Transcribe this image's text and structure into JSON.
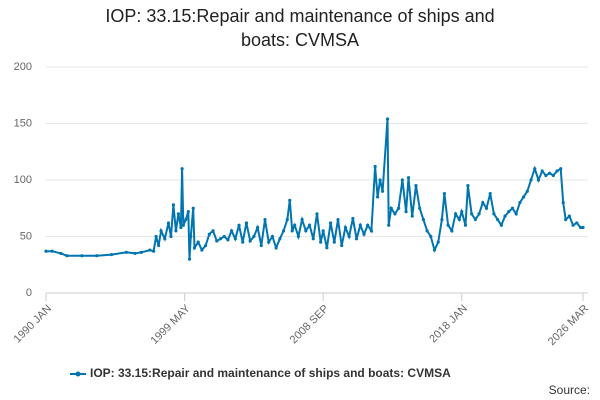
{
  "chart_data": {
    "type": "line",
    "title": "IOP: 33.15:Repair and maintenance of ships and boats: CVMSA",
    "source": "Source:",
    "x": [
      "1990 JAN",
      "1990 JUN",
      "1991 JAN",
      "1991 JUN",
      "1992 JUN",
      "1993 JUN",
      "1994 JUN",
      "1995 JUN",
      "1996 JAN",
      "1996 JUN",
      "1997 JAN",
      "1997 APR",
      "1997 JUN",
      "1997 AUG",
      "1997 OCT",
      "1998 JAN",
      "1998 APR",
      "1998 JUN",
      "1998 AUG",
      "1998 OCT",
      "1998 DEC",
      "1999 FEB",
      "1999 MAR",
      "1999 APR",
      "1999 JUN",
      "1999 AUG",
      "1999 SEP",
      "1999 OCT",
      "1999 DEC",
      "2000 JAN",
      "2000 APR",
      "2000 JUL",
      "2000 OCT",
      "2001 JAN",
      "2001 APR",
      "2001 JUL",
      "2001 OCT",
      "2002 JAN",
      "2002 APR",
      "2002 JUL",
      "2002 OCT",
      "2003 JAN",
      "2003 APR",
      "2003 JUL",
      "2003 OCT",
      "2004 JAN",
      "2004 APR",
      "2004 JUL",
      "2004 OCT",
      "2005 JAN",
      "2005 APR",
      "2005 JUL",
      "2005 OCT",
      "2006 JAN",
      "2006 APR",
      "2006 JUN",
      "2006 AUG",
      "2006 OCT",
      "2007 JAN",
      "2007 APR",
      "2007 JUL",
      "2007 OCT",
      "2008 JAN",
      "2008 APR",
      "2008 JUL",
      "2008 SEP",
      "2008 DEC",
      "2009 MAR",
      "2009 JUN",
      "2009 SEP",
      "2009 DEC",
      "2010 MAR",
      "2010 JUN",
      "2010 SEP",
      "2010 DEC",
      "2011 MAR",
      "2011 JUN",
      "2011 SEP",
      "2011 DEC",
      "2012 MAR",
      "2012 MAY",
      "2012 JUL",
      "2012 SEP",
      "2013 JAN",
      "2013 FEB",
      "2013 APR",
      "2013 JUL",
      "2013 OCT",
      "2014 JAN",
      "2014 APR",
      "2014 JUN",
      "2014 SEP",
      "2014 DEC",
      "2015 MAR",
      "2015 JUN",
      "2015 SEP",
      "2015 DEC",
      "2016 MAR",
      "2016 JUN",
      "2016 SEP",
      "2016 NOV",
      "2017 FEB",
      "2017 MAY",
      "2017 AUG",
      "2017 NOV",
      "2018 JAN",
      "2018 APR",
      "2018 JUN",
      "2018 SEP",
      "2018 DEC",
      "2019 MAR",
      "2019 JUN",
      "2019 SEP",
      "2019 DEC",
      "2020 MAR",
      "2020 JUN",
      "2020 SEP",
      "2020 DEC",
      "2021 MAR",
      "2021 JUN",
      "2021 SEP",
      "2021 DEC",
      "2022 MAR",
      "2022 JUN",
      "2022 SEP",
      "2022 DEC",
      "2023 MAR",
      "2023 JUN",
      "2023 SEP",
      "2023 DEC",
      "2024 MAR",
      "2024 JUN",
      "2024 SEP",
      "2024 NOV",
      "2025 JAN",
      "2025 APR",
      "2025 JUL",
      "2025 OCT",
      "2026 JAN",
      "2026 MAR"
    ],
    "series": [
      {
        "name": "IOP: 33.15:Repair and maintenance of ships and boats: CVMSA",
        "color": "#0075b0",
        "values": [
          37,
          37,
          35,
          33,
          33,
          33,
          34,
          36,
          35,
          36,
          38,
          37,
          50,
          42,
          55,
          48,
          62,
          50,
          78,
          55,
          70,
          58,
          110,
          60,
          65,
          72,
          30,
          50,
          75,
          40,
          45,
          38,
          42,
          52,
          55,
          46,
          48,
          50,
          47,
          55,
          48,
          60,
          45,
          62,
          46,
          50,
          58,
          42,
          65,
          45,
          50,
          40,
          48,
          55,
          65,
          82,
          55,
          60,
          50,
          65,
          55,
          60,
          48,
          70,
          45,
          55,
          40,
          62,
          45,
          65,
          42,
          58,
          50,
          66,
          48,
          60,
          52,
          60,
          55,
          112,
          85,
          100,
          90,
          154,
          60,
          75,
          70,
          75,
          100,
          72,
          102,
          68,
          95,
          75,
          65,
          55,
          50,
          38,
          45,
          65,
          88,
          60,
          55,
          70,
          65,
          72,
          60,
          95,
          70,
          65,
          70,
          80,
          75,
          88,
          70,
          65,
          60,
          68,
          72,
          75,
          70,
          80,
          85,
          90,
          100,
          110,
          100,
          108,
          104,
          106,
          104,
          108,
          110,
          80,
          65,
          68,
          60,
          62,
          58,
          58
        ]
      }
    ],
    "xticks": [
      "1990 JAN",
      "1999 MAY",
      "2008 SEP",
      "2018 JAN",
      "2026 MAR"
    ],
    "ylim": [
      0,
      200
    ],
    "yticks": [
      0,
      50,
      100,
      150,
      200
    ],
    "grid": true,
    "legend": "bottom"
  }
}
